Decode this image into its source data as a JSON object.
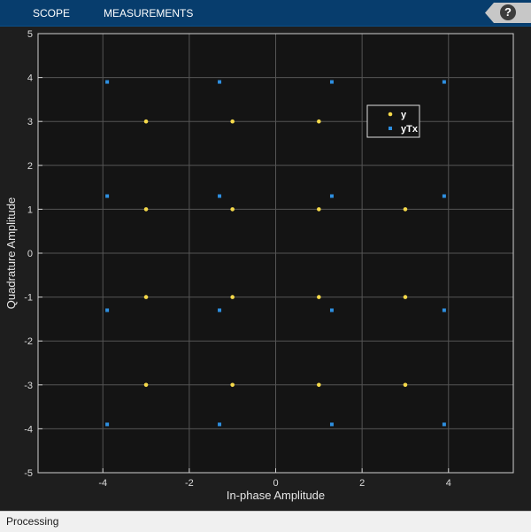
{
  "toolbar": {
    "tabs": [
      {
        "label": "SCOPE"
      },
      {
        "label": "MEASUREMENTS"
      }
    ],
    "help_label": "?"
  },
  "status": {
    "text": "Processing"
  },
  "colors": {
    "background": "#1e1e1e",
    "axes_background": "#141414",
    "grid": "#555555",
    "series_y": "#f5d94a",
    "series_yTx": "#2e8fe0"
  },
  "chart_data": {
    "type": "scatter",
    "xlabel": "In-phase Amplitude",
    "ylabel": "Quadrature Amplitude",
    "xlim": [
      -5.5,
      5.5
    ],
    "ylim": [
      -5,
      5
    ],
    "xticks": [
      -4,
      -2,
      0,
      2,
      4
    ],
    "yticks": [
      -5,
      -4,
      -3,
      -2,
      -1,
      0,
      1,
      2,
      3,
      4,
      5
    ],
    "grid": true,
    "legend_position": "top-right",
    "series": [
      {
        "name": "y",
        "color": "#f5d94a",
        "points": [
          [
            -3,
            3
          ],
          [
            -1,
            3
          ],
          [
            1,
            3
          ],
          [
            -3,
            1
          ],
          [
            -1,
            1
          ],
          [
            1,
            1
          ],
          [
            3,
            1
          ],
          [
            -3,
            -1
          ],
          [
            -1,
            -1
          ],
          [
            1,
            -1
          ],
          [
            3,
            -1
          ],
          [
            -3,
            -3
          ],
          [
            -1,
            -3
          ],
          [
            1,
            -3
          ],
          [
            3,
            -3
          ]
        ]
      },
      {
        "name": "yTx",
        "color": "#2e8fe0",
        "points": [
          [
            -3.9,
            3.9
          ],
          [
            -1.3,
            3.9
          ],
          [
            1.3,
            3.9
          ],
          [
            3.9,
            3.9
          ],
          [
            -3.9,
            1.3
          ],
          [
            -1.3,
            1.3
          ],
          [
            1.3,
            1.3
          ],
          [
            3.9,
            1.3
          ],
          [
            -3.9,
            -1.3
          ],
          [
            -1.3,
            -1.3
          ],
          [
            1.3,
            -1.3
          ],
          [
            3.9,
            -1.3
          ],
          [
            -3.9,
            -3.9
          ],
          [
            -1.3,
            -3.9
          ],
          [
            1.3,
            -3.9
          ],
          [
            3.9,
            -3.9
          ]
        ]
      }
    ]
  }
}
